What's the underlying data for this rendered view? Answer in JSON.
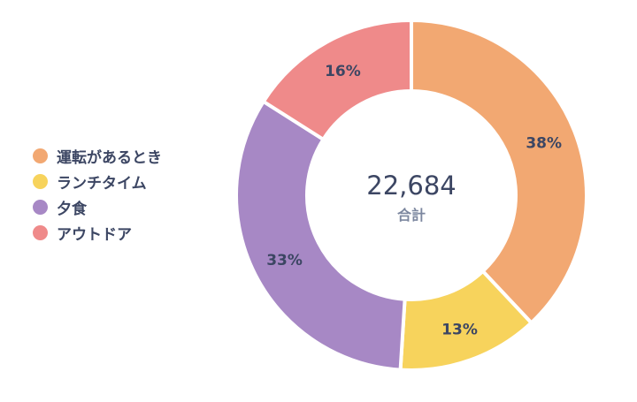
{
  "chart_data": {
    "type": "pie",
    "categories": [
      "運転があるとき",
      "ランチタイム",
      "夕食",
      "アウトドア"
    ],
    "values": [
      38,
      13,
      33,
      16
    ],
    "labels": [
      "38%",
      "13%",
      "33%",
      "16%"
    ],
    "colors": [
      "#f2a872",
      "#f7d35c",
      "#a788c5",
      "#ef8a8a"
    ],
    "center": {
      "total": "22,684",
      "label": "合計"
    },
    "legend": "left"
  }
}
